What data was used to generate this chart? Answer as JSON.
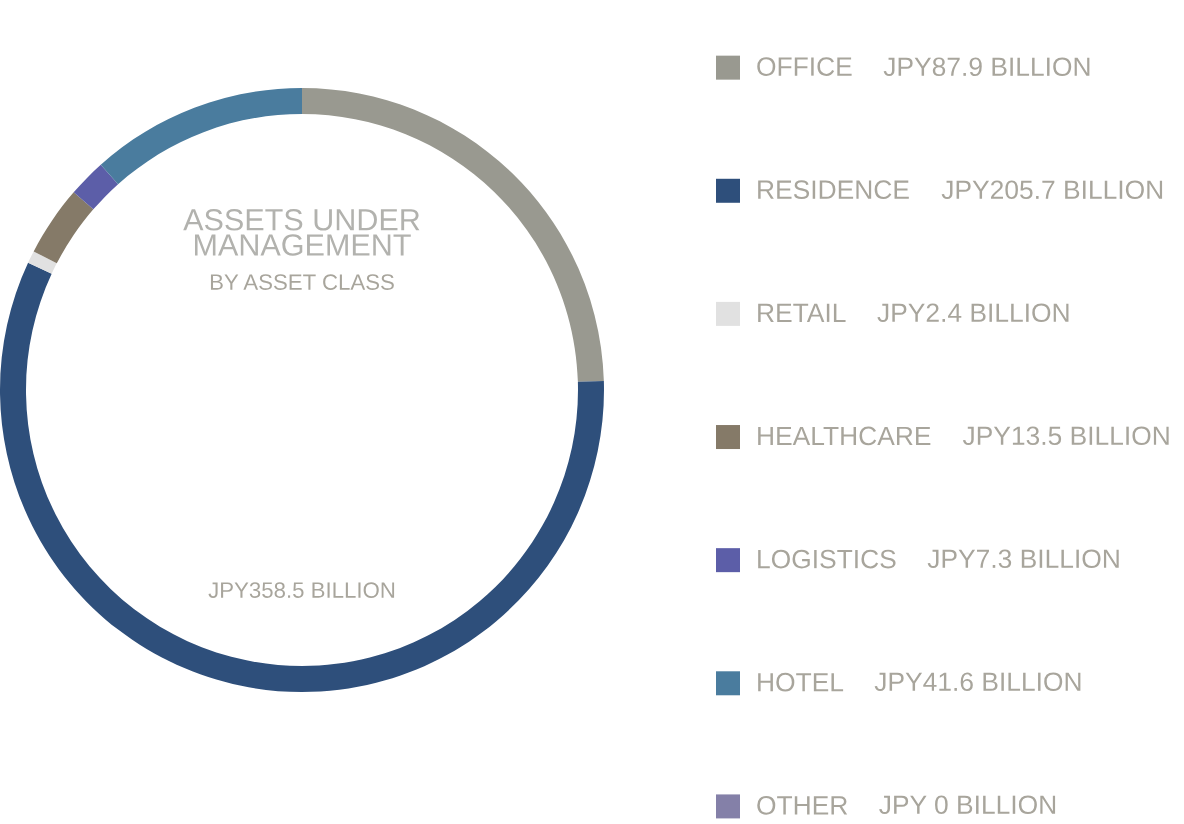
{
  "chart_data": {
    "type": "donut",
    "title": "ASSETS UNDER MANAGEMENT",
    "subtitle": "BY ASSET CLASS",
    "categories": [
      "OFFICE",
      "RESIDENCE",
      "RETAIL",
      "HEALTHCARE",
      "LOGISTICS",
      "HOTEL",
      "OTHER"
    ],
    "values": [
      87.9,
      205.7,
      2.4,
      13.5,
      7.3,
      41.6,
      0
    ],
    "value_labels": [
      "JPY87.9 BILLION",
      "JPY205.7 BILLION",
      "JPY2.4 BILLION",
      "JPY13.5 BILLION",
      "JPY7.3 BILLION",
      "JPY41.6 BILLION",
      "JPY 0 BILLION"
    ],
    "colors": [
      "#999990",
      "#2e4f7b",
      "#e1e1e1",
      "#857a68",
      "#5c5ea8",
      "#4a7c9e",
      "#8480a8"
    ],
    "annotations": [
      "JPY358.5 BILLION"
    ],
    "legend": "right"
  }
}
